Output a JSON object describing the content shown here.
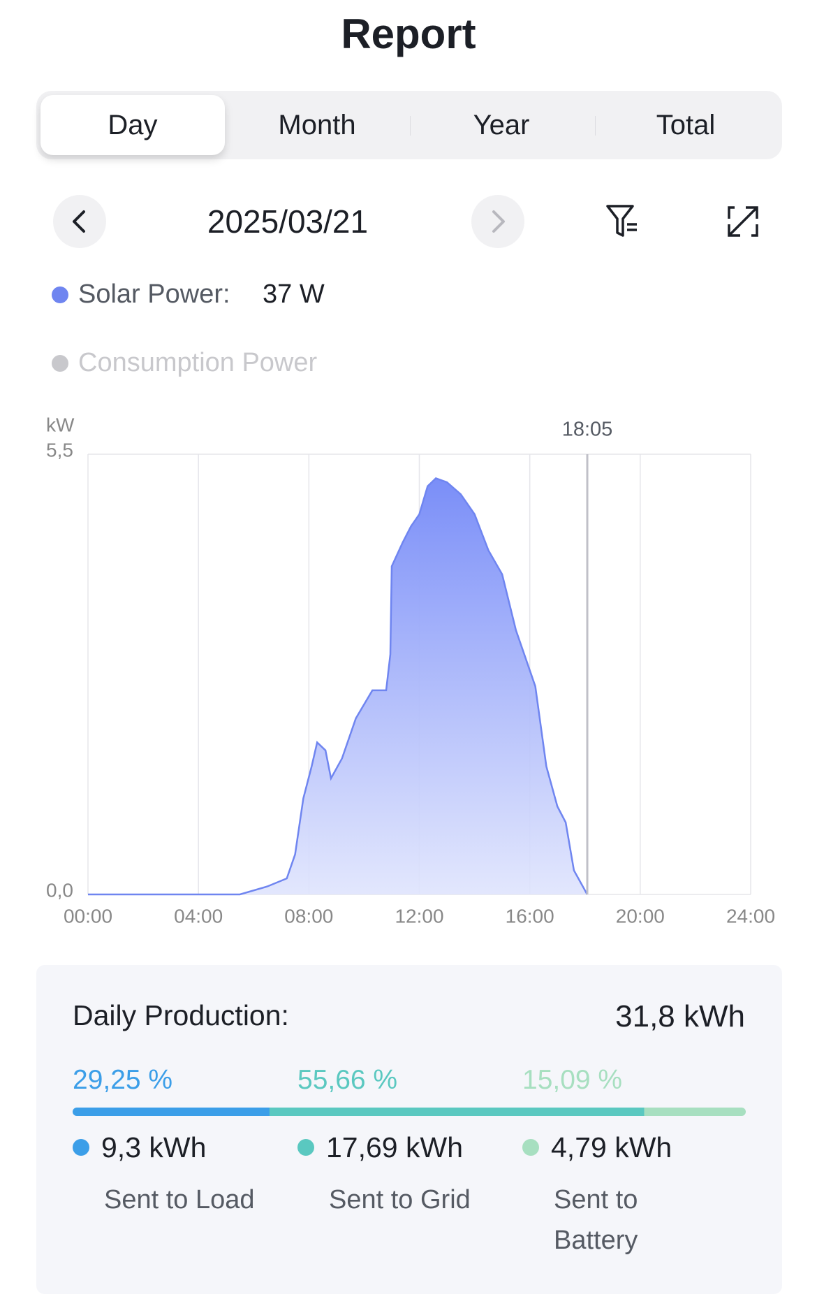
{
  "header": {
    "title": "Report"
  },
  "tabs": [
    "Day",
    "Month",
    "Year",
    "Total"
  ],
  "date": "2025/03/21",
  "legend": [
    {
      "name": "Solar Power:",
      "value": "37 W",
      "color": "#6f85f0"
    },
    {
      "name": "Consumption Power",
      "color": "#c8c8cc"
    }
  ],
  "chart_data": {
    "type": "area",
    "y_label": "kW",
    "x": [
      0,
      5.5,
      6.5,
      7.2,
      7.5,
      7.8,
      8.1,
      8.3,
      8.6,
      8.8,
      9.2,
      9.7,
      10.3,
      10.8,
      10.95,
      11.0,
      11.4,
      11.7,
      12.0,
      12.3,
      12.6,
      13.0,
      13.5,
      14.0,
      14.5,
      15.0,
      15.5,
      15.8,
      16.2,
      16.6,
      17.0,
      17.3,
      17.6,
      18.0,
      18.08
    ],
    "values": [
      0,
      0,
      0.1,
      0.2,
      0.5,
      1.2,
      1.6,
      1.9,
      1.8,
      1.45,
      1.7,
      2.2,
      2.55,
      2.55,
      3.0,
      4.1,
      4.4,
      4.6,
      4.75,
      5.1,
      5.2,
      5.15,
      5.0,
      4.75,
      4.3,
      4.0,
      3.3,
      3.0,
      2.6,
      1.6,
      1.1,
      0.9,
      0.3,
      0.05,
      0
    ],
    "color": "#6f85f0",
    "xlim": [
      0,
      24
    ],
    "xticks": [
      {
        "value": 0,
        "label": "00:00"
      },
      {
        "value": 4,
        "label": "04:00"
      },
      {
        "value": 8,
        "label": "08:00"
      },
      {
        "value": 12,
        "label": "12:00"
      },
      {
        "value": 16,
        "label": "16:00"
      },
      {
        "value": 20,
        "label": "20:00"
      },
      {
        "value": 24,
        "label": "24:00"
      }
    ],
    "ylim": [
      0,
      5.5
    ],
    "yticks": [
      {
        "value": 0,
        "label": "0,0"
      },
      {
        "value": 5.5,
        "label": "5,5"
      }
    ],
    "grid": true,
    "cursor": {
      "value": 18.083,
      "label": "18:05"
    }
  },
  "production": {
    "title": "Daily Production:",
    "total": "31,8 kWh",
    "shares": [
      29.25,
      55.66,
      15.09
    ],
    "share_labels": [
      "29,25 %",
      "55,66 %",
      "15,09 %"
    ],
    "items": [
      {
        "amount": "9,3 kWh",
        "label": "Sent to Load",
        "color": "#3b9ee8"
      },
      {
        "amount": "17,69 kWh",
        "label": "Sent to Grid",
        "color": "#5ac8c0"
      },
      {
        "amount": "4,79 kWh",
        "label": "Sent to Battery",
        "color": "#a7dfc0"
      }
    ]
  }
}
